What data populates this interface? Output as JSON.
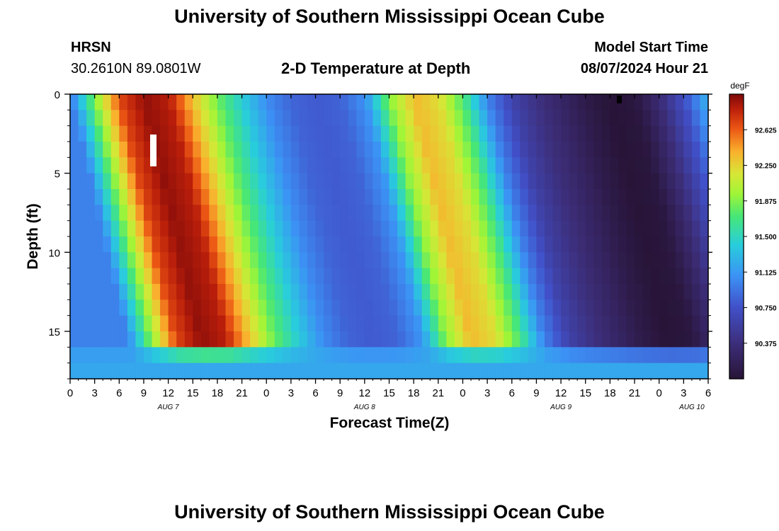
{
  "header": {
    "title": "University of Southern Mississippi Ocean Cube",
    "station": "HRSN",
    "coords": "30.2610N  89.0801W",
    "subtitle": "2-D Temperature at Depth",
    "model_label": "Model Start Time",
    "model_time": "08/07/2024 Hour 21"
  },
  "footer": {
    "title": "University of Southern Mississippi Ocean Cube"
  },
  "chart_data": {
    "type": "heatmap",
    "title": "2-D Temperature at Depth",
    "xlabel": "Forecast Time(Z)",
    "ylabel": "Depth (ft)",
    "x_range_hours": [
      0,
      78
    ],
    "x_ticks": [
      {
        "h": 0,
        "label": "0"
      },
      {
        "h": 3,
        "label": "3"
      },
      {
        "h": 6,
        "label": "6"
      },
      {
        "h": 9,
        "label": "9"
      },
      {
        "h": 12,
        "label": "12"
      },
      {
        "h": 15,
        "label": "15"
      },
      {
        "h": 18,
        "label": "18"
      },
      {
        "h": 21,
        "label": "21"
      },
      {
        "h": 24,
        "label": "0"
      },
      {
        "h": 27,
        "label": "3"
      },
      {
        "h": 30,
        "label": "6"
      },
      {
        "h": 33,
        "label": "9"
      },
      {
        "h": 36,
        "label": "12"
      },
      {
        "h": 39,
        "label": "15"
      },
      {
        "h": 42,
        "label": "18"
      },
      {
        "h": 45,
        "label": "21"
      },
      {
        "h": 48,
        "label": "0"
      },
      {
        "h": 51,
        "label": "3"
      },
      {
        "h": 54,
        "label": "6"
      },
      {
        "h": 57,
        "label": "9"
      },
      {
        "h": 60,
        "label": "12"
      },
      {
        "h": 63,
        "label": "15"
      },
      {
        "h": 66,
        "label": "18"
      },
      {
        "h": 69,
        "label": "21"
      },
      {
        "h": 72,
        "label": "0"
      },
      {
        "h": 75,
        "label": "3"
      },
      {
        "h": 78,
        "label": "6"
      }
    ],
    "date_labels": [
      {
        "h": 12,
        "label": "AUG 7"
      },
      {
        "h": 36,
        "label": "AUG 8"
      },
      {
        "h": 60,
        "label": "AUG 9"
      },
      {
        "h": 76,
        "label": "AUG 10"
      }
    ],
    "y_range_ft": [
      0,
      18
    ],
    "y_ticks": [
      0,
      5,
      10,
      15
    ],
    "colorbar": {
      "unit": "degF",
      "range": [
        90.0,
        93.0
      ],
      "ticks": [
        "92.625",
        "92.250",
        "91.875",
        "91.500",
        "91.125",
        "90.750",
        "90.375"
      ]
    },
    "surface_profile_degF": [
      {
        "h": 0,
        "v": 91.0
      },
      {
        "h": 3,
        "v": 91.9
      },
      {
        "h": 6,
        "v": 92.7
      },
      {
        "h": 9,
        "v": 92.95
      },
      {
        "h": 12,
        "v": 92.85
      },
      {
        "h": 15,
        "v": 92.3
      },
      {
        "h": 18,
        "v": 91.8
      },
      {
        "h": 21,
        "v": 91.4
      },
      {
        "h": 24,
        "v": 91.05
      },
      {
        "h": 27,
        "v": 90.85
      },
      {
        "h": 30,
        "v": 90.8
      },
      {
        "h": 33,
        "v": 90.85
      },
      {
        "h": 36,
        "v": 91.1
      },
      {
        "h": 39,
        "v": 91.9
      },
      {
        "h": 42,
        "v": 92.35
      },
      {
        "h": 45,
        "v": 92.2
      },
      {
        "h": 48,
        "v": 91.7
      },
      {
        "h": 51,
        "v": 91.0
      },
      {
        "h": 54,
        "v": 90.6
      },
      {
        "h": 57,
        "v": 90.4
      },
      {
        "h": 60,
        "v": 90.25
      },
      {
        "h": 63,
        "v": 90.1
      },
      {
        "h": 66,
        "v": 90.0
      },
      {
        "h": 69,
        "v": 90.05
      },
      {
        "h": 72,
        "v": 90.35
      },
      {
        "h": 75,
        "v": 90.75
      },
      {
        "h": 78,
        "v": 91.3
      }
    ],
    "bottom_layer_degF": 91.2,
    "bottom_layer_depth_ft": 16
  }
}
